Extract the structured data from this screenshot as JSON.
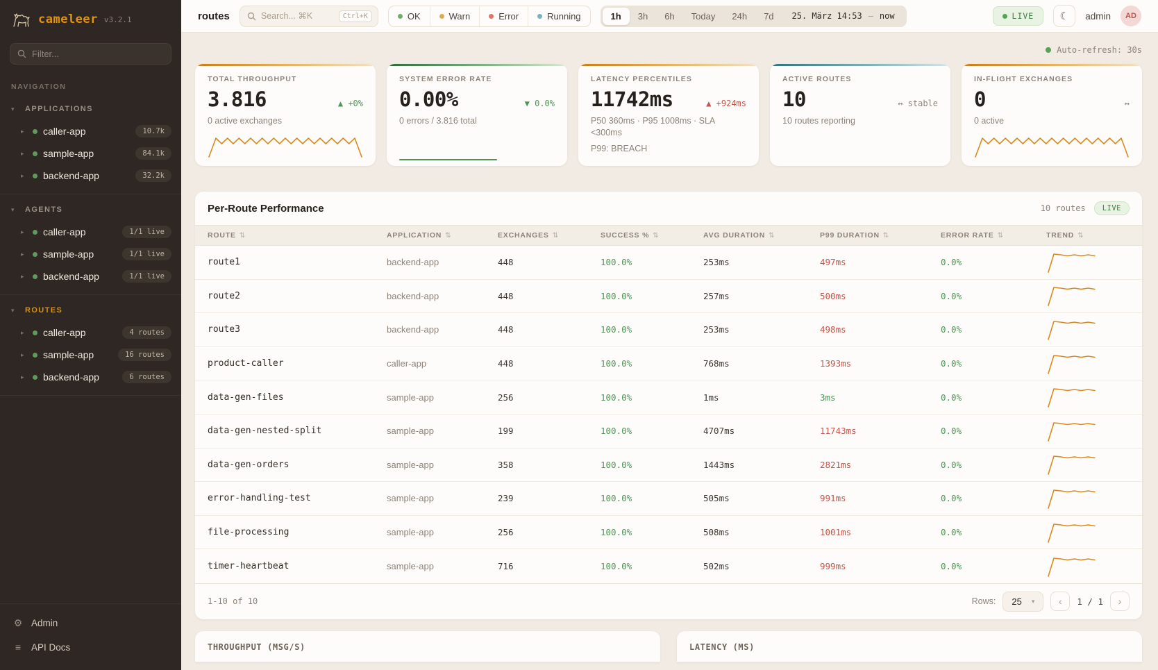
{
  "app": {
    "name": "cameleer",
    "version": "v3.2.1",
    "page": "routes"
  },
  "colors": {
    "accent_orange": "#d98a1e",
    "green": "#4f9456",
    "red": "#c4544a",
    "teal": "#5598a3",
    "sidebar_bg": "#2e2723",
    "background": "#f1ebe3",
    "live_green": "#56a057"
  },
  "ui": {
    "caret_down": "▾",
    "caret_right": "▸",
    "sort_icon": "⇅",
    "moon": "☾",
    "select_caret": "▾"
  },
  "sidebar": {
    "filter_placeholder": "Filter...",
    "nav_label": "NAVIGATION",
    "sections": [
      {
        "label": "APPLICATIONS",
        "items": [
          {
            "label": "caller-app",
            "badge": "10.7k"
          },
          {
            "label": "sample-app",
            "badge": "84.1k"
          },
          {
            "label": "backend-app",
            "badge": "32.2k"
          }
        ]
      },
      {
        "label": "AGENTS",
        "items": [
          {
            "label": "caller-app",
            "badge": "1/1 live"
          },
          {
            "label": "sample-app",
            "badge": "1/1 live"
          },
          {
            "label": "backend-app",
            "badge": "1/1 live"
          }
        ]
      },
      {
        "label": "ROUTES",
        "items": [
          {
            "label": "caller-app",
            "badge": "4 routes"
          },
          {
            "label": "sample-app",
            "badge": "16 routes"
          },
          {
            "label": "backend-app",
            "badge": "6 routes"
          }
        ]
      }
    ],
    "footer": [
      {
        "label": "Admin"
      },
      {
        "label": "API Docs"
      }
    ]
  },
  "topbar": {
    "search_placeholder": "Search... ⌘K",
    "shortcut": "Ctrl+K",
    "status_filters": [
      {
        "label": "OK",
        "dot": "ok"
      },
      {
        "label": "Warn",
        "dot": "warn"
      },
      {
        "label": "Error",
        "dot": "error"
      },
      {
        "label": "Running",
        "dot": "running"
      }
    ],
    "time_ranges": [
      {
        "label": "1h",
        "state": "active"
      },
      {
        "label": "3h",
        "state": ""
      },
      {
        "label": "6h",
        "state": ""
      },
      {
        "label": "Today",
        "state": ""
      },
      {
        "label": "24h",
        "state": ""
      },
      {
        "label": "7d",
        "state": ""
      }
    ],
    "time_display": "25. März 14:53",
    "time_sep": "—",
    "time_now": "now",
    "live_label": "LIVE",
    "user": "admin",
    "avatar": "AD"
  },
  "autorefresh": "Auto-refresh: 30s",
  "kpis": {
    "throughput": {
      "label": "TOTAL THROUGHPUT",
      "value": "3.816",
      "delta": "▲ +0%",
      "sub": "0 active exchanges"
    },
    "error_rate": {
      "label": "SYSTEM ERROR RATE",
      "value": "0.00%",
      "delta": "▼ 0.0%",
      "sub": "0 errors / 3.816 total"
    },
    "latency": {
      "label": "LATENCY PERCENTILES",
      "value": "11742ms",
      "delta": "▲ +924ms",
      "sub": "P50 360ms · P95 1008ms · SLA <300ms",
      "sub2": "P99: BREACH"
    },
    "active_routes": {
      "label": "ACTIVE ROUTES",
      "value": "10",
      "delta": "↔ stable",
      "sub": "10 routes reporting"
    },
    "inflight": {
      "label": "IN-FLIGHT EXCHANGES",
      "value": "0",
      "delta": "↔",
      "sub": "0 active"
    }
  },
  "table": {
    "title": "Per-Route Performance",
    "routes_count": "10 routes",
    "live": "LIVE",
    "columns": [
      "ROUTE",
      "APPLICATION",
      "EXCHANGES",
      "SUCCESS %",
      "AVG DURATION",
      "P99 DURATION",
      "ERROR RATE",
      "TREND"
    ],
    "rows": [
      {
        "route": "route1",
        "app": "backend-app",
        "exchanges": "448",
        "success": "100.0%",
        "avg": "253ms",
        "p99": "497ms",
        "p99_class": "bad",
        "error": "0.0%"
      },
      {
        "route": "route2",
        "app": "backend-app",
        "exchanges": "448",
        "success": "100.0%",
        "avg": "257ms",
        "p99": "500ms",
        "p99_class": "bad",
        "error": "0.0%"
      },
      {
        "route": "route3",
        "app": "backend-app",
        "exchanges": "448",
        "success": "100.0%",
        "avg": "253ms",
        "p99": "498ms",
        "p99_class": "bad",
        "error": "0.0%"
      },
      {
        "route": "product-caller",
        "app": "caller-app",
        "exchanges": "448",
        "success": "100.0%",
        "avg": "768ms",
        "p99": "1393ms",
        "p99_class": "bad",
        "error": "0.0%"
      },
      {
        "route": "data-gen-files",
        "app": "sample-app",
        "exchanges": "256",
        "success": "100.0%",
        "avg": "1ms",
        "p99": "3ms",
        "p99_class": "good",
        "error": "0.0%"
      },
      {
        "route": "data-gen-nested-split",
        "app": "sample-app",
        "exchanges": "199",
        "success": "100.0%",
        "avg": "4707ms",
        "p99": "11743ms",
        "p99_class": "bad",
        "error": "0.0%"
      },
      {
        "route": "data-gen-orders",
        "app": "sample-app",
        "exchanges": "358",
        "success": "100.0%",
        "avg": "1443ms",
        "p99": "2821ms",
        "p99_class": "bad",
        "error": "0.0%"
      },
      {
        "route": "error-handling-test",
        "app": "sample-app",
        "exchanges": "239",
        "success": "100.0%",
        "avg": "505ms",
        "p99": "991ms",
        "p99_class": "bad",
        "error": "0.0%"
      },
      {
        "route": "file-processing",
        "app": "sample-app",
        "exchanges": "256",
        "success": "100.0%",
        "avg": "508ms",
        "p99": "1001ms",
        "p99_class": "bad",
        "error": "0.0%"
      },
      {
        "route": "timer-heartbeat",
        "app": "sample-app",
        "exchanges": "716",
        "success": "100.0%",
        "avg": "502ms",
        "p99": "999ms",
        "p99_class": "bad",
        "error": "0.0%"
      }
    ],
    "pagination": {
      "range": "1-10 of 10",
      "rows_label": "Rows:",
      "rows_value": "25",
      "prev": "‹",
      "page": "1 / 1",
      "next": "›"
    }
  },
  "charts": {
    "throughput_title": "THROUGHPUT (MSG/S)",
    "latency_title": "LATENCY (MS)"
  }
}
